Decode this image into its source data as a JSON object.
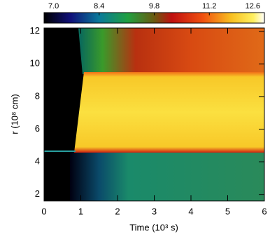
{
  "chart_data": {
    "type": "heatmap",
    "xlabel": "Time (10³ s)",
    "ylabel": "r (10⁸ cm)",
    "xlim": [
      0,
      6
    ],
    "xticks": [
      0,
      1,
      2,
      3,
      4,
      5,
      6
    ],
    "ylim": [
      1.6,
      12.2
    ],
    "yticks": [
      2,
      4,
      6,
      8,
      10,
      12
    ],
    "colorbar": {
      "lim": [
        7.0,
        12.6
      ],
      "ticks": [
        {
          "value": 7.0,
          "label": "7.0"
        },
        {
          "value": 8.4,
          "label": "8.4"
        },
        {
          "value": 9.8,
          "label": "9.8"
        },
        {
          "value": 11.2,
          "label": "11.2"
        },
        {
          "value": 12.6,
          "label": "12.6"
        }
      ]
    }
  }
}
